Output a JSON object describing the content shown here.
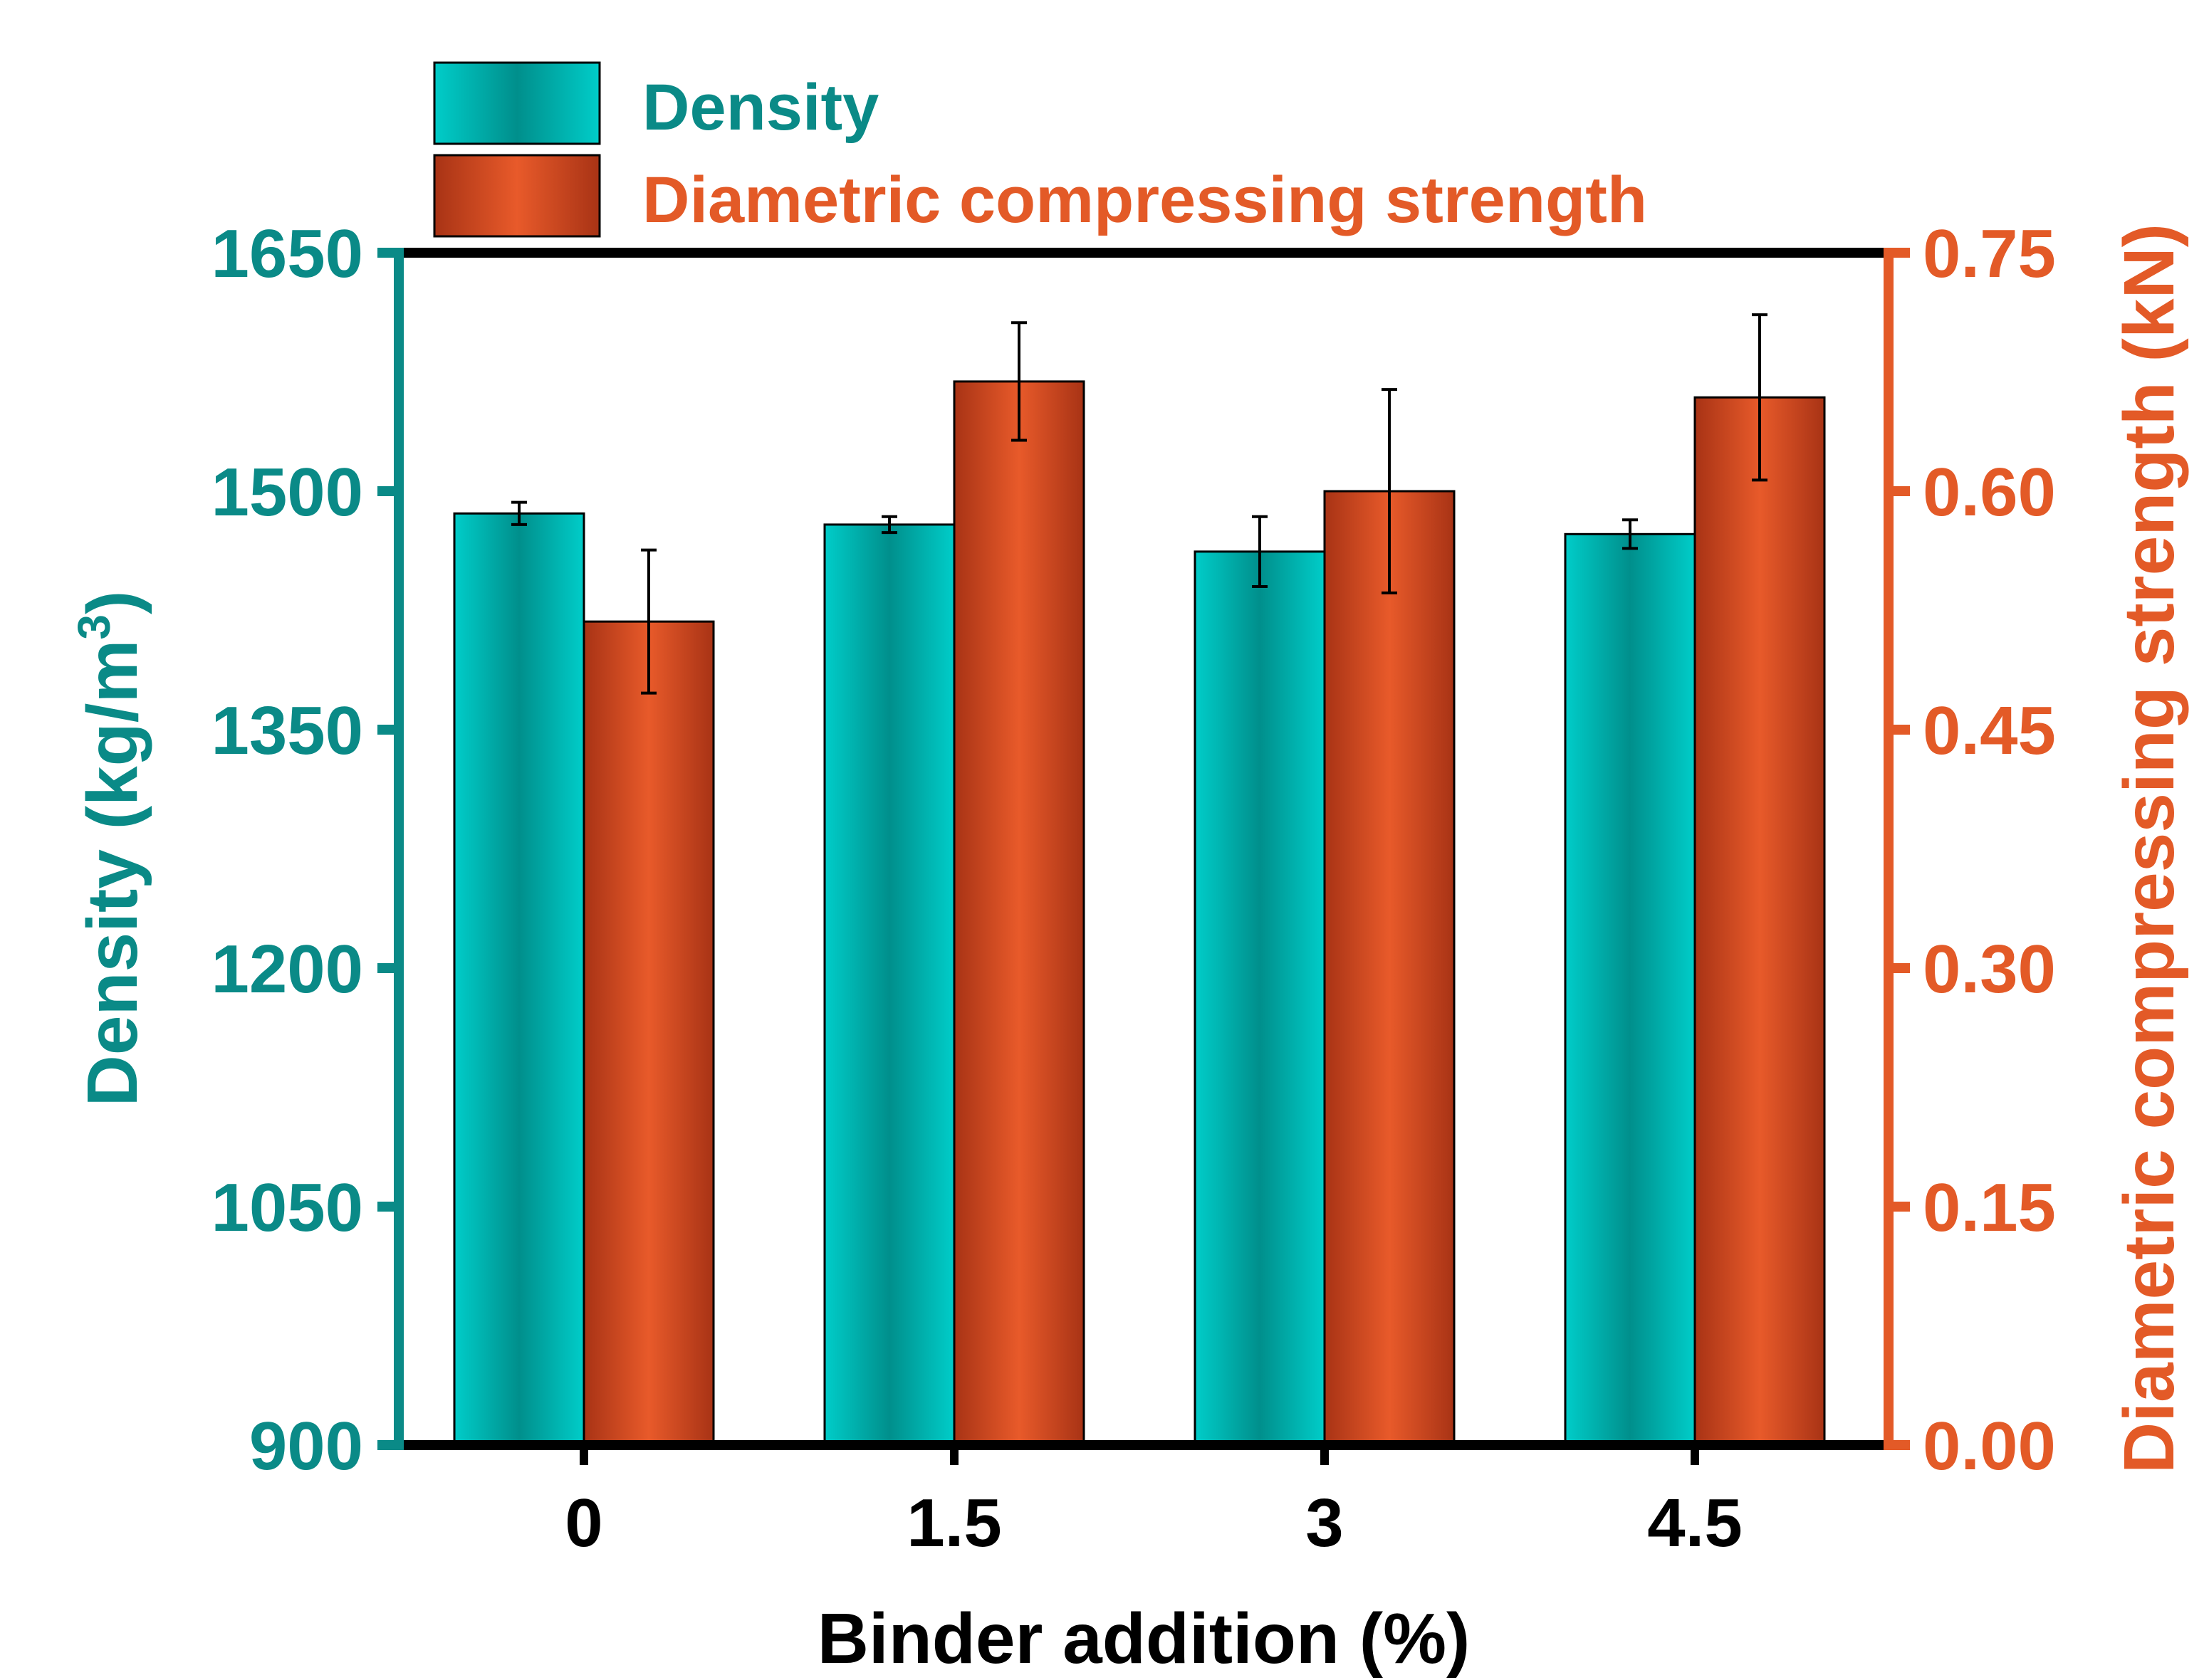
{
  "chart_data": {
    "type": "bar",
    "categories": [
      "0",
      "1.5",
      "3",
      "4.5"
    ],
    "xlabel": "Binder addition (%)",
    "left_axis": {
      "label_main": "Density (kg/m",
      "label_sup": "3",
      "label_end": ")",
      "ylim": [
        900,
        1650
      ],
      "ticks": [
        "900",
        "1050",
        "1200",
        "1350",
        "1500",
        "1650"
      ],
      "color": "#0a8a87"
    },
    "right_axis": {
      "label": "Diametric compressing strength (kN)",
      "ylim": [
        0,
        0.75
      ],
      "ticks": [
        "0.00",
        "0.15",
        "0.30",
        "0.45",
        "0.60",
        "0.75"
      ],
      "color": "#e35a27"
    },
    "series": [
      {
        "name": "Density",
        "axis": "left",
        "values": [
          1486,
          1479,
          1462,
          1473
        ],
        "errors": [
          7,
          5,
          22,
          9
        ],
        "color_light": "#00cdc9",
        "color_dark": "#008f8c"
      },
      {
        "name": "Diametric compressing strength",
        "axis": "right",
        "values": [
          0.518,
          0.669,
          0.6,
          0.659
        ],
        "errors": [
          0.045,
          0.037,
          0.064,
          0.052
        ],
        "color_light": "#e85a2a",
        "color_dark": "#a83315"
      }
    ],
    "legend": {
      "position": "top-left"
    }
  }
}
